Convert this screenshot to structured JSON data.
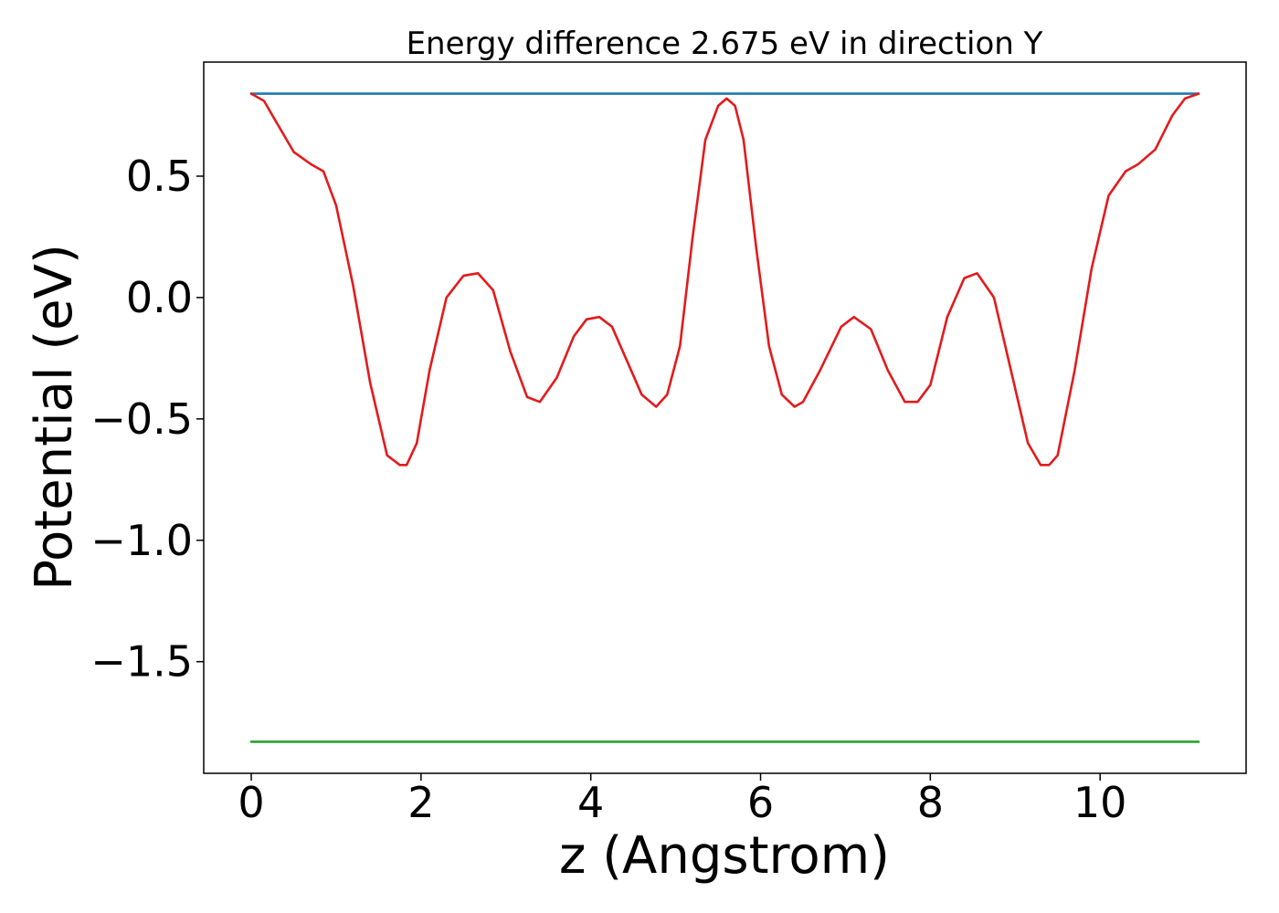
{
  "chart_data": {
    "type": "line",
    "title": "Energy difference 2.675 eV in direction Y",
    "xlabel": "z (Angstrom)",
    "ylabel": "Potential (eV)",
    "xlim": [
      -0.56,
      11.72
    ],
    "ylim": [
      -1.96,
      0.97
    ],
    "xticks": [
      {
        "value": 0,
        "label": "0"
      },
      {
        "value": 2,
        "label": "2"
      },
      {
        "value": 4,
        "label": "4"
      },
      {
        "value": 6,
        "label": "6"
      },
      {
        "value": 8,
        "label": "8"
      },
      {
        "value": 10,
        "label": "10"
      }
    ],
    "yticks": [
      {
        "value": 0.5,
        "label": "0.5"
      },
      {
        "value": 0.0,
        "label": "0.0"
      },
      {
        "value": -0.5,
        "label": "−0.5"
      },
      {
        "value": -1.0,
        "label": "−1.0"
      },
      {
        "value": -1.5,
        "label": "−1.5"
      }
    ],
    "grid": false,
    "series": [
      {
        "color": "#1f77b4",
        "x": [
          0,
          11.16
        ],
        "y": [
          0.84,
          0.84
        ]
      },
      {
        "color": "#2ca02c",
        "x": [
          0,
          11.16
        ],
        "y": [
          -1.83,
          -1.83
        ]
      },
      {
        "color": "#e31a1c",
        "x": [
          0,
          0.15,
          0.3,
          0.5,
          0.7,
          0.85,
          1.0,
          1.2,
          1.4,
          1.6,
          1.75,
          1.83,
          1.95,
          2.1,
          2.3,
          2.5,
          2.67,
          2.85,
          3.05,
          3.25,
          3.4,
          3.6,
          3.8,
          3.95,
          4.1,
          4.25,
          4.45,
          4.6,
          4.77,
          4.9,
          5.05,
          5.2,
          5.35,
          5.5,
          5.6,
          5.7,
          5.8,
          5.95,
          6.1,
          6.25,
          6.4,
          6.5,
          6.7,
          6.95,
          7.1,
          7.3,
          7.5,
          7.7,
          7.85,
          8.0,
          8.2,
          8.4,
          8.55,
          8.75,
          8.95,
          9.15,
          9.3,
          9.4,
          9.5,
          9.7,
          9.9,
          10.1,
          10.3,
          10.45,
          10.65,
          10.85,
          11.0,
          11.16
        ],
        "y": [
          0.84,
          0.81,
          0.72,
          0.6,
          0.55,
          0.52,
          0.38,
          0.05,
          -0.35,
          -0.65,
          -0.69,
          -0.69,
          -0.6,
          -0.3,
          0.0,
          0.09,
          0.1,
          0.03,
          -0.22,
          -0.41,
          -0.43,
          -0.33,
          -0.16,
          -0.09,
          -0.08,
          -0.12,
          -0.28,
          -0.4,
          -0.45,
          -0.4,
          -0.2,
          0.25,
          0.65,
          0.79,
          0.82,
          0.79,
          0.65,
          0.2,
          -0.2,
          -0.4,
          -0.45,
          -0.43,
          -0.3,
          -0.12,
          -0.08,
          -0.13,
          -0.3,
          -0.43,
          -0.43,
          -0.36,
          -0.08,
          0.08,
          0.1,
          0.0,
          -0.3,
          -0.6,
          -0.69,
          -0.69,
          -0.65,
          -0.3,
          0.12,
          0.42,
          0.52,
          0.55,
          0.61,
          0.75,
          0.82,
          0.84
        ]
      }
    ]
  }
}
